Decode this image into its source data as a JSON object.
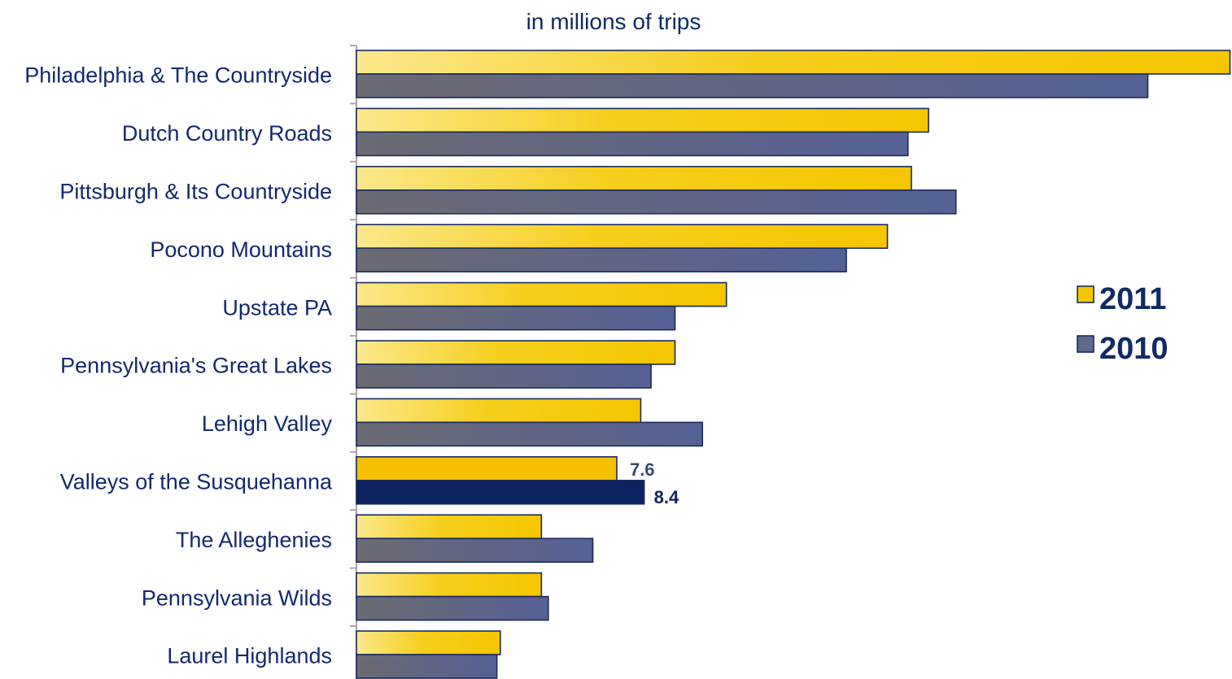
{
  "chart_data": {
    "type": "bar",
    "orientation": "horizontal",
    "subtitle": "in millions of trips",
    "categories": [
      "Philadelphia & The Countryside",
      "Dutch Country Roads",
      "Pittsburgh & Its Countryside",
      "Pocono Mountains",
      "Upstate PA",
      "Pennsylvania's Great Lakes",
      "Lehigh Valley",
      "Valleys of the Susquehanna",
      "The Alleghenies",
      "Pennsylvania Wilds",
      "Laurel Highlands"
    ],
    "series": [
      {
        "name": "2011",
        "color": "#f5c800",
        "values": [
          25.5,
          16.7,
          16.2,
          15.5,
          10.8,
          9.3,
          8.3,
          7.6,
          5.4,
          5.4,
          4.2
        ]
      },
      {
        "name": "2010",
        "color": "#5e6a8e",
        "values": [
          23.1,
          16.1,
          17.5,
          14.3,
          9.3,
          8.6,
          10.1,
          8.4,
          6.9,
          5.6,
          4.1
        ]
      }
    ],
    "highlight": {
      "category": "Valleys of the Susquehanna",
      "colors": {
        "2011": "#f5c000",
        "2010": "#0d2260"
      },
      "labels": {
        "2011": "7.6",
        "2010": "8.4"
      }
    },
    "legend": {
      "placement": "right",
      "entries": [
        "2011",
        "2010"
      ]
    },
    "grid": false
  }
}
